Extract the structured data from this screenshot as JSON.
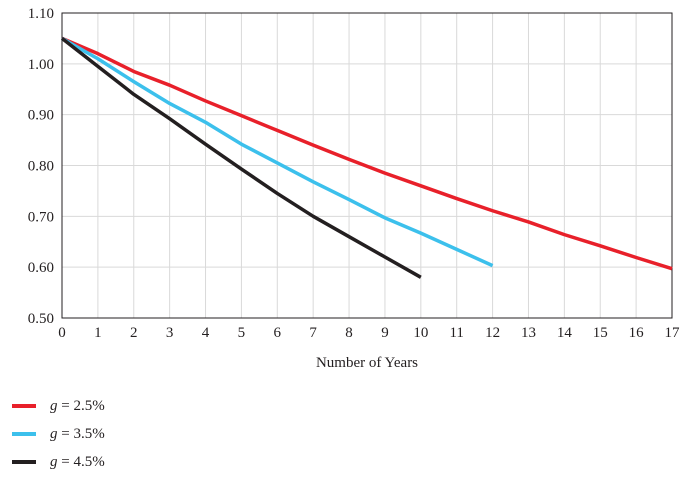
{
  "chart_data": {
    "type": "line",
    "xlabel": "Number of Years",
    "ylabel": "",
    "xlim": [
      0,
      17
    ],
    "ylim": [
      0.5,
      1.1
    ],
    "x_ticks": [
      0,
      1,
      2,
      3,
      4,
      5,
      6,
      7,
      8,
      9,
      10,
      11,
      12,
      13,
      14,
      15,
      16,
      17
    ],
    "y_ticks": [
      "0.50",
      "0.60",
      "0.70",
      "0.80",
      "0.90",
      "1.00",
      "1.10"
    ],
    "grid": true,
    "legend_placement": "bottom-left",
    "series": [
      {
        "name_var": "g",
        "name_value": " = 2.5%",
        "color": "#e8202a",
        "x": [
          0,
          1,
          2,
          3,
          4,
          5,
          6,
          7,
          8,
          9,
          10,
          11,
          12,
          13,
          14,
          15,
          16,
          17
        ],
        "y": [
          1.05,
          1.02,
          0.985,
          0.958,
          0.927,
          0.898,
          0.869,
          0.84,
          0.812,
          0.785,
          0.76,
          0.735,
          0.711,
          0.689,
          0.664,
          0.642,
          0.619,
          0.597
        ]
      },
      {
        "name_var": "g",
        "name_value": " = 3.5%",
        "color": "#3cc0ec",
        "x": [
          0,
          1,
          2,
          3,
          4,
          5,
          6,
          7,
          8,
          9,
          10,
          11,
          12
        ],
        "y": [
          1.05,
          1.01,
          0.965,
          0.922,
          0.885,
          0.842,
          0.805,
          0.768,
          0.733,
          0.697,
          0.667,
          0.635,
          0.603
        ]
      },
      {
        "name_var": "g",
        "name_value": " = 4.5%",
        "color": "#231f20",
        "x": [
          0,
          1,
          2,
          3,
          4,
          5,
          6,
          7,
          8,
          9,
          10
        ],
        "y": [
          1.05,
          0.995,
          0.94,
          0.892,
          0.842,
          0.793,
          0.745,
          0.7,
          0.66,
          0.62,
          0.58
        ]
      }
    ]
  }
}
